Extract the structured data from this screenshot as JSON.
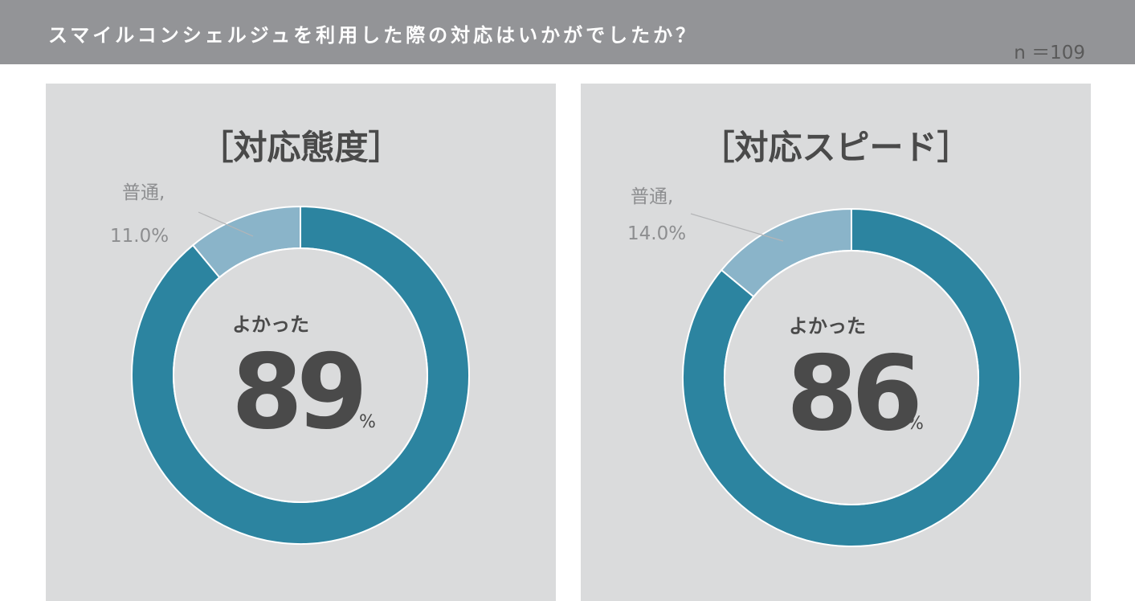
{
  "header": {
    "title": "スマイルコンシェルジュを利用した際の対応はいかがでしたか？",
    "sample_size": "n ＝109"
  },
  "colors": {
    "header_bg": "#939497",
    "panel_bg": "#dadbdc",
    "good": "#2c84a0",
    "neutral": "#8ab4c9",
    "text": "#4a4a4a",
    "muted": "#8d8e90"
  },
  "charts": [
    {
      "title": "［対応態度］",
      "center_label": "よかった",
      "center_value": "89",
      "center_unit": "%",
      "callout_category": "普通,",
      "callout_value": "11.0%"
    },
    {
      "title": "［対応スピード］",
      "center_label": "よかった",
      "center_value": "86",
      "center_unit": "%",
      "callout_category": "普通,",
      "callout_value": "14.0%"
    }
  ],
  "chart_data": [
    {
      "type": "pie",
      "title": "［対応態度］",
      "categories": [
        "よかった",
        "普通"
      ],
      "values": [
        89.0,
        11.0
      ],
      "colors": [
        "#2c84a0",
        "#8ab4c9"
      ]
    },
    {
      "type": "pie",
      "title": "［対応スピード］",
      "categories": [
        "よかった",
        "普通"
      ],
      "values": [
        86.0,
        14.0
      ],
      "colors": [
        "#2c84a0",
        "#8ab4c9"
      ]
    }
  ]
}
